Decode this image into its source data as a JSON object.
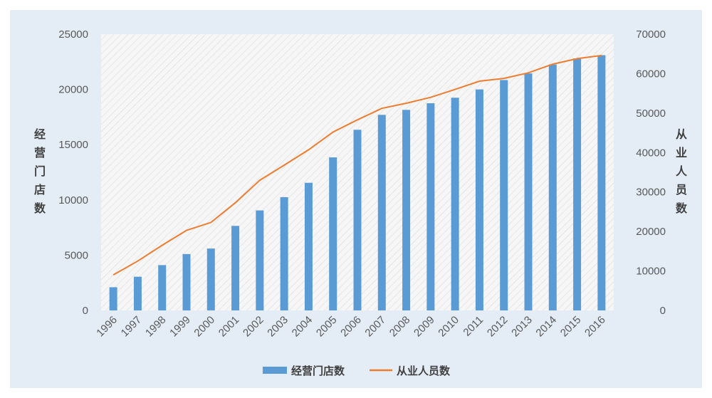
{
  "chart_data": {
    "type": "bar+line",
    "categories": [
      "1996",
      "1997",
      "1998",
      "1999",
      "2000",
      "2001",
      "2002",
      "2003",
      "2004",
      "2005",
      "2006",
      "2007",
      "2008",
      "2009",
      "2010",
      "2011",
      "2012",
      "2013",
      "2014",
      "2015",
      "2016"
    ],
    "series": [
      {
        "name": "经营门店数",
        "type": "bar",
        "axis": "left",
        "color": "#5b9bd5",
        "values": [
          2100,
          3050,
          4100,
          5100,
          5600,
          7650,
          9050,
          10250,
          11550,
          13850,
          16350,
          17700,
          18150,
          18750,
          19250,
          20000,
          20850,
          21450,
          22250,
          22800,
          23100
        ]
      },
      {
        "name": "从业人员数",
        "type": "line",
        "axis": "right",
        "color": "#ed7d31",
        "values": [
          9000,
          12500,
          16500,
          20300,
          22300,
          27300,
          33000,
          36800,
          40700,
          45200,
          48300,
          51200,
          52500,
          54000,
          56000,
          58100,
          58800,
          60200,
          62400,
          63800,
          64600
        ]
      }
    ],
    "y_left": {
      "label": "经营门店数",
      "range": [
        0,
        25000
      ],
      "ticks": [
        "0",
        "5000",
        "10000",
        "15000",
        "20000",
        "25000"
      ]
    },
    "y_right": {
      "label": "从业人员数",
      "range": [
        0,
        70000
      ],
      "ticks": [
        "0",
        "10000",
        "20000",
        "30000",
        "40000",
        "50000",
        "60000",
        "70000"
      ]
    },
    "legend": {
      "placement": "bottom",
      "entries": [
        "经营门店数",
        "从业人员数"
      ]
    },
    "x_tick_rotation": "-45deg",
    "grid": false,
    "background": "#e4ecf6",
    "plot_pattern": "diagonal-hatch"
  }
}
